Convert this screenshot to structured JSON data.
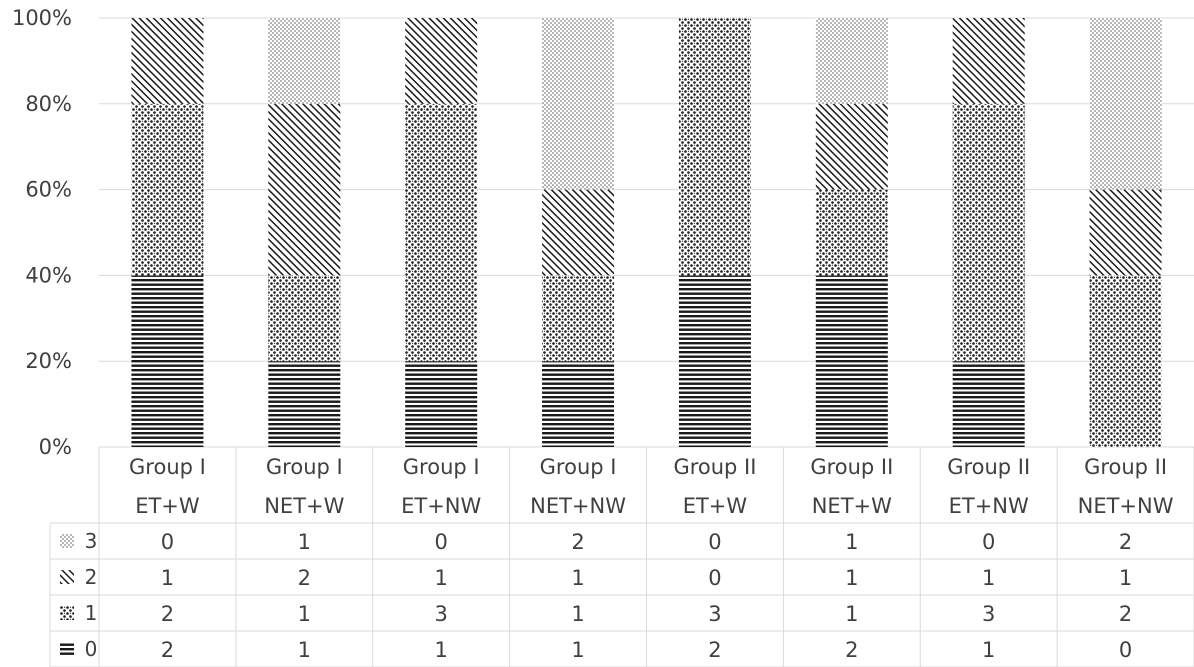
{
  "chart_data": {
    "type": "bar",
    "stacked": "percent",
    "grid": true,
    "legend": "table-left",
    "ylim": [
      0,
      100
    ],
    "y_ticks": [
      "0%",
      "20%",
      "40%",
      "60%",
      "80%",
      "100%"
    ],
    "categories": [
      [
        "Group I",
        "ET+W"
      ],
      [
        "Group I",
        "NET+W"
      ],
      [
        "Group I",
        "ET+NW"
      ],
      [
        "Group I",
        "NET+NW"
      ],
      [
        "Group II",
        "ET+W"
      ],
      [
        "Group II",
        "NET+W"
      ],
      [
        "Group II",
        "ET+NW"
      ],
      [
        "Group II",
        "NET+NW"
      ]
    ],
    "series": [
      {
        "name": "0",
        "pattern": "horizontal-lines",
        "values": [
          2,
          1,
          1,
          1,
          2,
          2,
          1,
          0
        ]
      },
      {
        "name": "1",
        "pattern": "dense-dots",
        "values": [
          2,
          1,
          3,
          1,
          3,
          1,
          3,
          2
        ]
      },
      {
        "name": "2",
        "pattern": "diagonal-lines",
        "values": [
          1,
          2,
          1,
          1,
          0,
          1,
          1,
          1
        ]
      },
      {
        "name": "3",
        "pattern": "sparse-dots",
        "values": [
          0,
          1,
          0,
          2,
          0,
          1,
          0,
          2
        ]
      }
    ],
    "table_row_order": [
      "3",
      "2",
      "1",
      "0"
    ]
  }
}
